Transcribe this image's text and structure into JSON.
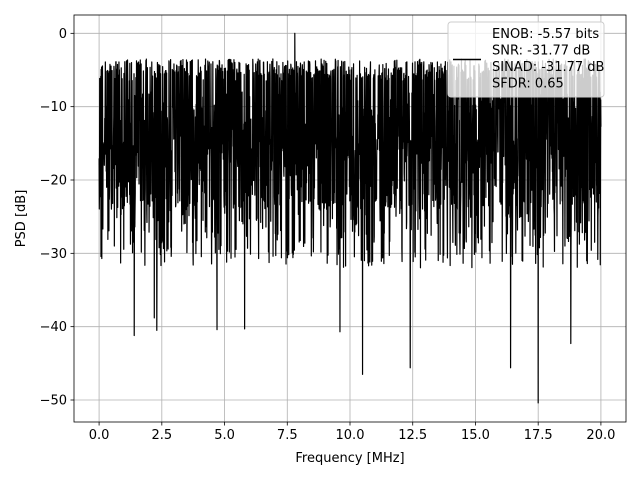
{
  "chart_data": {
    "type": "line",
    "title": "",
    "xlabel": "Frequency [MHz]",
    "ylabel": "PSD [dB]",
    "xlim": [
      -1.0,
      21.0
    ],
    "ylim": [
      -53.0,
      2.5
    ],
    "grid": true,
    "x_ticks": [
      0.0,
      2.5,
      5.0,
      7.5,
      10.0,
      12.5,
      15.0,
      17.5,
      20.0
    ],
    "x_tick_labels": [
      "0.0",
      "2.5",
      "5.0",
      "7.5",
      "10.0",
      "12.5",
      "15.0",
      "17.5",
      "20.0"
    ],
    "y_ticks": [
      0,
      -10,
      -20,
      -30,
      -40,
      -50
    ],
    "y_tick_labels": [
      "0",
      "−10",
      "−20",
      "−30",
      "−40",
      "−50"
    ],
    "legend": {
      "placement": "top-right",
      "entries": [
        "ENOB: -5.57 bits",
        "SNR: -31.77 dB",
        "SINAD: -31.77 dB",
        "SFDR: 0.65"
      ]
    },
    "series": [
      {
        "color": "#000000",
        "x_range": [
          0.0,
          20.0
        ],
        "typical_range": [
          -30.0,
          -3.5
        ],
        "peak": {
          "x": 7.8,
          "y": 0.0
        },
        "deep_dips": [
          {
            "x": 1.4,
            "y": -41.2
          },
          {
            "x": 2.2,
            "y": -38.8
          },
          {
            "x": 2.3,
            "y": -40.5
          },
          {
            "x": 4.7,
            "y": -40.4
          },
          {
            "x": 5.8,
            "y": -40.3
          },
          {
            "x": 9.6,
            "y": -40.7
          },
          {
            "x": 10.5,
            "y": -46.5
          },
          {
            "x": 12.4,
            "y": -45.6
          },
          {
            "x": 16.4,
            "y": -45.6
          },
          {
            "x": 17.5,
            "y": -50.4
          },
          {
            "x": 18.8,
            "y": -42.3
          }
        ]
      }
    ]
  }
}
